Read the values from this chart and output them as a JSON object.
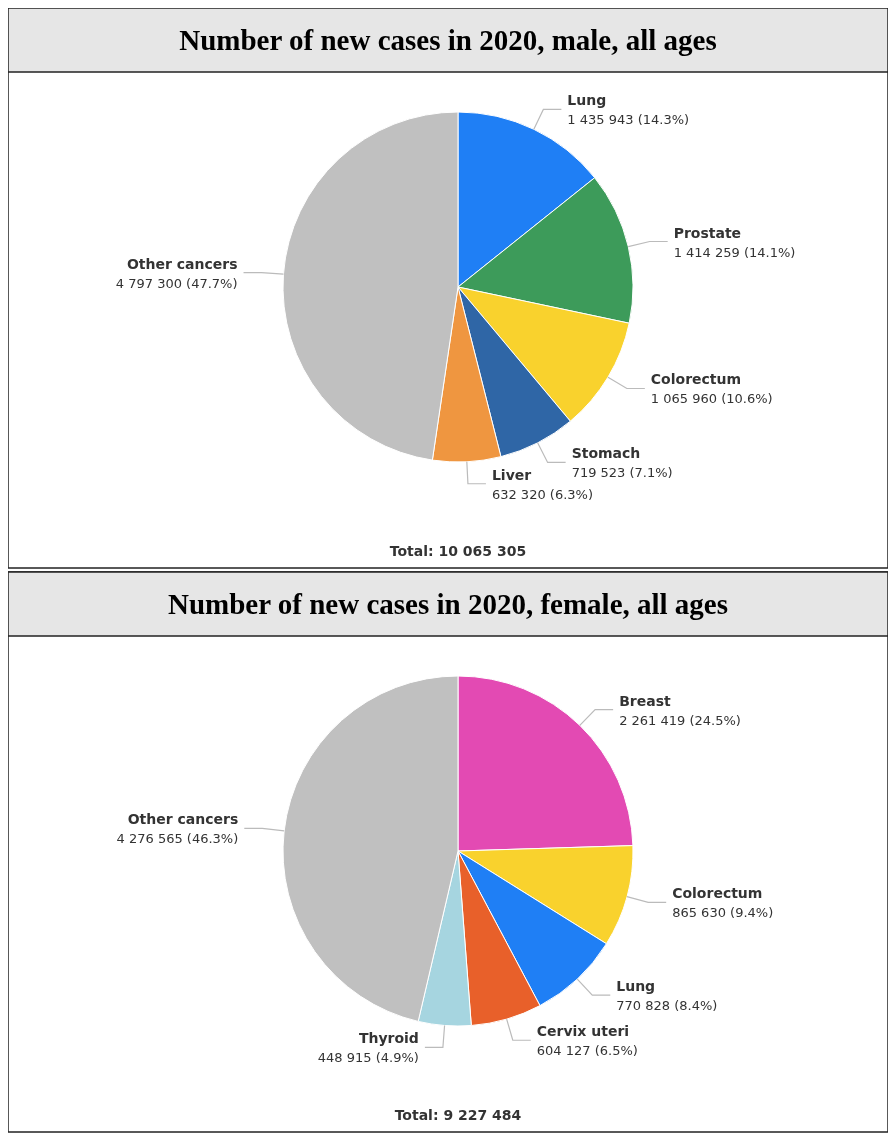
{
  "chart_data": [
    {
      "type": "pie",
      "title": "Number of new cases in 2020, male, all ages",
      "categories": [
        "Lung",
        "Prostate",
        "Colorectum",
        "Stomach",
        "Liver",
        "Other cancers"
      ],
      "values": [
        1435943,
        1414259,
        1065960,
        719523,
        632320,
        4797300
      ],
      "colors": [
        "#1f7ff5",
        "#3d9b5a",
        "#f9d22d",
        "#2f66a6",
        "#ef9640",
        "#c0c0c0"
      ],
      "value_labels": [
        "1 435 943 (14.3%)",
        "1 414 259 (14.1%)",
        "1 065 960 (10.6%)",
        "719 523 (7.1%)",
        "632 320 (6.3%)",
        "4 797 300 (47.7%)"
      ],
      "annotations": [
        "Total: 10 065 305"
      ]
    },
    {
      "type": "pie",
      "title": "Number of new cases in 2020, female, all ages",
      "categories": [
        "Breast",
        "Colorectum",
        "Lung",
        "Cervix uteri",
        "Thyroid",
        "Other cancers"
      ],
      "values": [
        2261419,
        865630,
        770828,
        604127,
        448915,
        4276565
      ],
      "colors": [
        "#e34ab3",
        "#f9d22d",
        "#1f7ff5",
        "#e8602a",
        "#a6d5e0",
        "#c0c0c0"
      ],
      "value_labels": [
        "2 261 419 (24.5%)",
        "865 630 (9.4%)",
        "770 828 (8.4%)",
        "604 127 (6.5%)",
        "448 915 (4.9%)",
        "4 276 565 (46.3%)"
      ],
      "annotations": [
        "Total: 9 227 484"
      ]
    }
  ]
}
